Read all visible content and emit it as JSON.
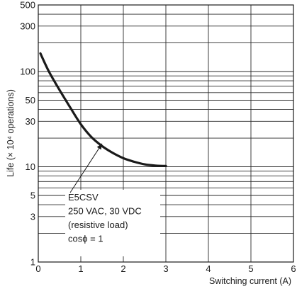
{
  "chart_data": {
    "type": "line",
    "title": "",
    "xlabel": "Switching current (A)",
    "ylabel": "Life (× 10⁴ operations)",
    "xlim": [
      0,
      6
    ],
    "ylim": [
      1,
      500
    ],
    "yscale": "log",
    "grid": true,
    "x_ticks": [
      "0",
      "1",
      "2",
      "3",
      "4",
      "5",
      "6"
    ],
    "y_ticks": [
      "1",
      "3",
      "5",
      "10",
      "30",
      "50",
      "100",
      "300",
      "500"
    ],
    "y_tick_values": [
      1,
      3,
      5,
      10,
      30,
      50,
      100,
      300,
      500
    ],
    "y_gridlines": [
      1,
      2,
      3,
      4,
      5,
      6,
      7,
      8,
      9,
      10,
      20,
      30,
      40,
      50,
      60,
      70,
      80,
      90,
      100,
      200,
      300,
      400,
      500
    ],
    "series": [
      {
        "color": "#1a1a1a",
        "points": [
          {
            "x": 0.05,
            "y": 155
          },
          {
            "x": 0.25,
            "y": 100
          },
          {
            "x": 0.5,
            "y": 64
          },
          {
            "x": 0.75,
            "y": 42
          },
          {
            "x": 1.0,
            "y": 28
          },
          {
            "x": 1.25,
            "y": 20.5
          },
          {
            "x": 1.5,
            "y": 16.5
          },
          {
            "x": 1.75,
            "y": 14
          },
          {
            "x": 2.0,
            "y": 12.3
          },
          {
            "x": 2.25,
            "y": 11.3
          },
          {
            "x": 2.5,
            "y": 10.6
          },
          {
            "x": 2.75,
            "y": 10.3
          },
          {
            "x": 3.0,
            "y": 10.2
          }
        ]
      }
    ],
    "annotation": {
      "lines": [
        "E5CSV",
        "250 VAC, 30 VDC",
        "(resistive load)",
        "cosϕ = 1"
      ],
      "arrow_to": {
        "x": 1.5,
        "y": 17.5
      }
    }
  }
}
